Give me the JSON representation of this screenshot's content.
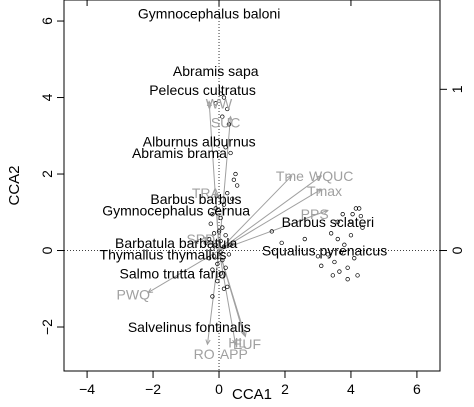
{
  "chart_data": {
    "type": "scatter",
    "xlabel": "CCA1",
    "ylabel": "CCA2",
    "xlim": [
      -4.7,
      6.7
    ],
    "ylim": [
      -3.15,
      6.55
    ],
    "secondary_ylim": [
      -3.15,
      6.55
    ],
    "x_ticks": [
      -4,
      -2,
      0,
      2,
      4,
      6
    ],
    "y_ticks": [
      -2,
      0,
      2,
      4,
      6
    ],
    "x2_ticks": [
      0
    ],
    "y2_ticks": [
      0,
      1
    ],
    "reference_lines": {
      "x": 0,
      "y": 0,
      "style": "dotted"
    },
    "site_points": [
      {
        "x": 0.05,
        "y": 4.1
      },
      {
        "x": 0.15,
        "y": 4.0
      },
      {
        "x": -0.1,
        "y": 3.85
      },
      {
        "x": 0.25,
        "y": 3.7
      },
      {
        "x": 0.1,
        "y": 3.5
      },
      {
        "x": 0.3,
        "y": 3.3
      },
      {
        "x": 0.2,
        "y": 2.7
      },
      {
        "x": 0.35,
        "y": 2.55
      },
      {
        "x": 0.5,
        "y": 2.0
      },
      {
        "x": 0.45,
        "y": 1.85
      },
      {
        "x": 0.55,
        "y": 1.7
      },
      {
        "x": 0.25,
        "y": 1.5
      },
      {
        "x": 0.4,
        "y": 1.35
      },
      {
        "x": 0.15,
        "y": 1.2
      },
      {
        "x": -0.1,
        "y": 1.1
      },
      {
        "x": -0.2,
        "y": 0.95
      },
      {
        "x": 0.05,
        "y": 0.85
      },
      {
        "x": -0.25,
        "y": 0.7
      },
      {
        "x": 0.1,
        "y": 0.6
      },
      {
        "x": -0.15,
        "y": 0.45
      },
      {
        "x": 0.2,
        "y": 0.4
      },
      {
        "x": -0.3,
        "y": 0.3
      },
      {
        "x": 0.05,
        "y": 0.25
      },
      {
        "x": -0.1,
        "y": 0.15
      },
      {
        "x": 0.15,
        "y": 0.1
      },
      {
        "x": -0.2,
        "y": 0.05
      },
      {
        "x": 0.05,
        "y": -0.05
      },
      {
        "x": -0.15,
        "y": -0.15
      },
      {
        "x": 0.1,
        "y": -0.25
      },
      {
        "x": -0.05,
        "y": -0.35
      },
      {
        "x": 0.2,
        "y": -0.45
      },
      {
        "x": -0.2,
        "y": -0.5
      },
      {
        "x": 0.05,
        "y": -0.6
      },
      {
        "x": -0.3,
        "y": -0.2
      },
      {
        "x": 0.3,
        "y": -0.1
      },
      {
        "x": -0.4,
        "y": 0.2
      },
      {
        "x": 0.35,
        "y": 0.15
      },
      {
        "x": 0.0,
        "y": 0.5
      },
      {
        "x": -0.05,
        "y": -0.8
      },
      {
        "x": 0.15,
        "y": -1.0
      },
      {
        "x": -0.2,
        "y": -1.2
      },
      {
        "x": 0.25,
        "y": -0.95
      },
      {
        "x": 1.6,
        "y": 0.5
      },
      {
        "x": 1.9,
        "y": 0.2
      },
      {
        "x": 2.6,
        "y": 0.3
      },
      {
        "x": 3.0,
        "y": -0.15
      },
      {
        "x": 3.1,
        "y": -0.4
      },
      {
        "x": 3.3,
        "y": -0.1
      },
      {
        "x": 3.4,
        "y": 0.45
      },
      {
        "x": 3.5,
        "y": -0.3
      },
      {
        "x": 3.6,
        "y": 0.3
      },
      {
        "x": 3.7,
        "y": -0.05
      },
      {
        "x": 3.8,
        "y": 0.15
      },
      {
        "x": 3.9,
        "y": -0.45
      },
      {
        "x": 4.0,
        "y": 0.4
      },
      {
        "x": 4.1,
        "y": -0.2
      },
      {
        "x": 4.0,
        "y": 0.75
      },
      {
        "x": 4.05,
        "y": 0.95
      },
      {
        "x": 4.15,
        "y": 1.1
      },
      {
        "x": 4.25,
        "y": 1.1
      },
      {
        "x": 4.3,
        "y": 0.9
      },
      {
        "x": 4.35,
        "y": 0.6
      },
      {
        "x": 3.6,
        "y": 0.75
      },
      {
        "x": 3.75,
        "y": 0.95
      },
      {
        "x": 3.9,
        "y": -0.75
      },
      {
        "x": 3.45,
        "y": -0.65
      },
      {
        "x": 3.65,
        "y": -0.55
      },
      {
        "x": 4.2,
        "y": -0.65
      }
    ],
    "species_labels": [
      {
        "text": "Gymnocephalus baloni",
        "x": -0.3,
        "y": 6.2
      },
      {
        "text": "Abramis sapa",
        "x": -0.1,
        "y": 4.7
      },
      {
        "text": "Pelecus cultratus",
        "x": -0.5,
        "y": 4.2
      },
      {
        "text": "Alburnus alburnus",
        "x": -0.6,
        "y": 2.85
      },
      {
        "text": "Abramis brama",
        "x": -1.2,
        "y": 2.55
      },
      {
        "text": "Barbus barbus",
        "x": -0.7,
        "y": 1.35
      },
      {
        "text": "Gymnocephalus cernua",
        "x": -1.3,
        "y": 1.05
      },
      {
        "text": "Barbus sclateri",
        "x": 3.3,
        "y": 0.75
      },
      {
        "text": "Barbatula barbatula",
        "x": -1.3,
        "y": 0.2
      },
      {
        "text": "Squalius pyrenaicus",
        "x": 3.2,
        "y": 0.0
      },
      {
        "text": "Thymallus thymallus",
        "x": -1.7,
        "y": -0.1
      },
      {
        "text": "Salmo trutta fario",
        "x": -1.4,
        "y": -0.6
      },
      {
        "text": "Salvelinus fontinalis",
        "x": -0.9,
        "y": -2.0
      }
    ],
    "env_vectors": [
      {
        "name": "WW",
        "x": -0.3,
        "y": 3.9,
        "label_x": 0.0,
        "label_y": 3.85
      },
      {
        "name": "SUC",
        "x": 0.35,
        "y": 3.5,
        "label_x": 0.2,
        "label_y": 3.35
      },
      {
        "name": "Tme",
        "x": 2.2,
        "y": 1.95,
        "label_x": 2.15,
        "label_y": 1.95
      },
      {
        "name": "WQUC",
        "x": 3.1,
        "y": 1.95,
        "label_x": 3.4,
        "label_y": 1.95
      },
      {
        "name": "Tmax",
        "x": 3.1,
        "y": 1.6,
        "label_x": 3.2,
        "label_y": 1.55
      },
      {
        "name": "PPS",
        "x": 3.3,
        "y": 1.05,
        "label_x": 2.9,
        "label_y": 0.95
      },
      {
        "name": "TRA",
        "x": -0.1,
        "y": 1.5,
        "label_x": -0.4,
        "label_y": 1.5
      },
      {
        "name": "SPD",
        "x": -0.45,
        "y": 0.35,
        "label_x": -0.55,
        "label_y": 0.3
      },
      {
        "name": "PWQ",
        "x": -2.15,
        "y": -1.1,
        "label_x": -2.6,
        "label_y": -1.15
      },
      {
        "name": "RO",
        "x": -0.35,
        "y": -2.45,
        "label_x": -0.45,
        "label_y": -2.7
      },
      {
        "name": "APP",
        "x": 0.5,
        "y": -2.45,
        "label_x": 0.45,
        "label_y": -2.7
      },
      {
        "name": "HL",
        "x": 0.75,
        "y": -2.2,
        "label_x": 0.55,
        "label_y": -2.4
      },
      {
        "name": "EUF",
        "x": 0.8,
        "y": -2.25,
        "label_x": 0.85,
        "label_y": -2.45
      }
    ]
  }
}
